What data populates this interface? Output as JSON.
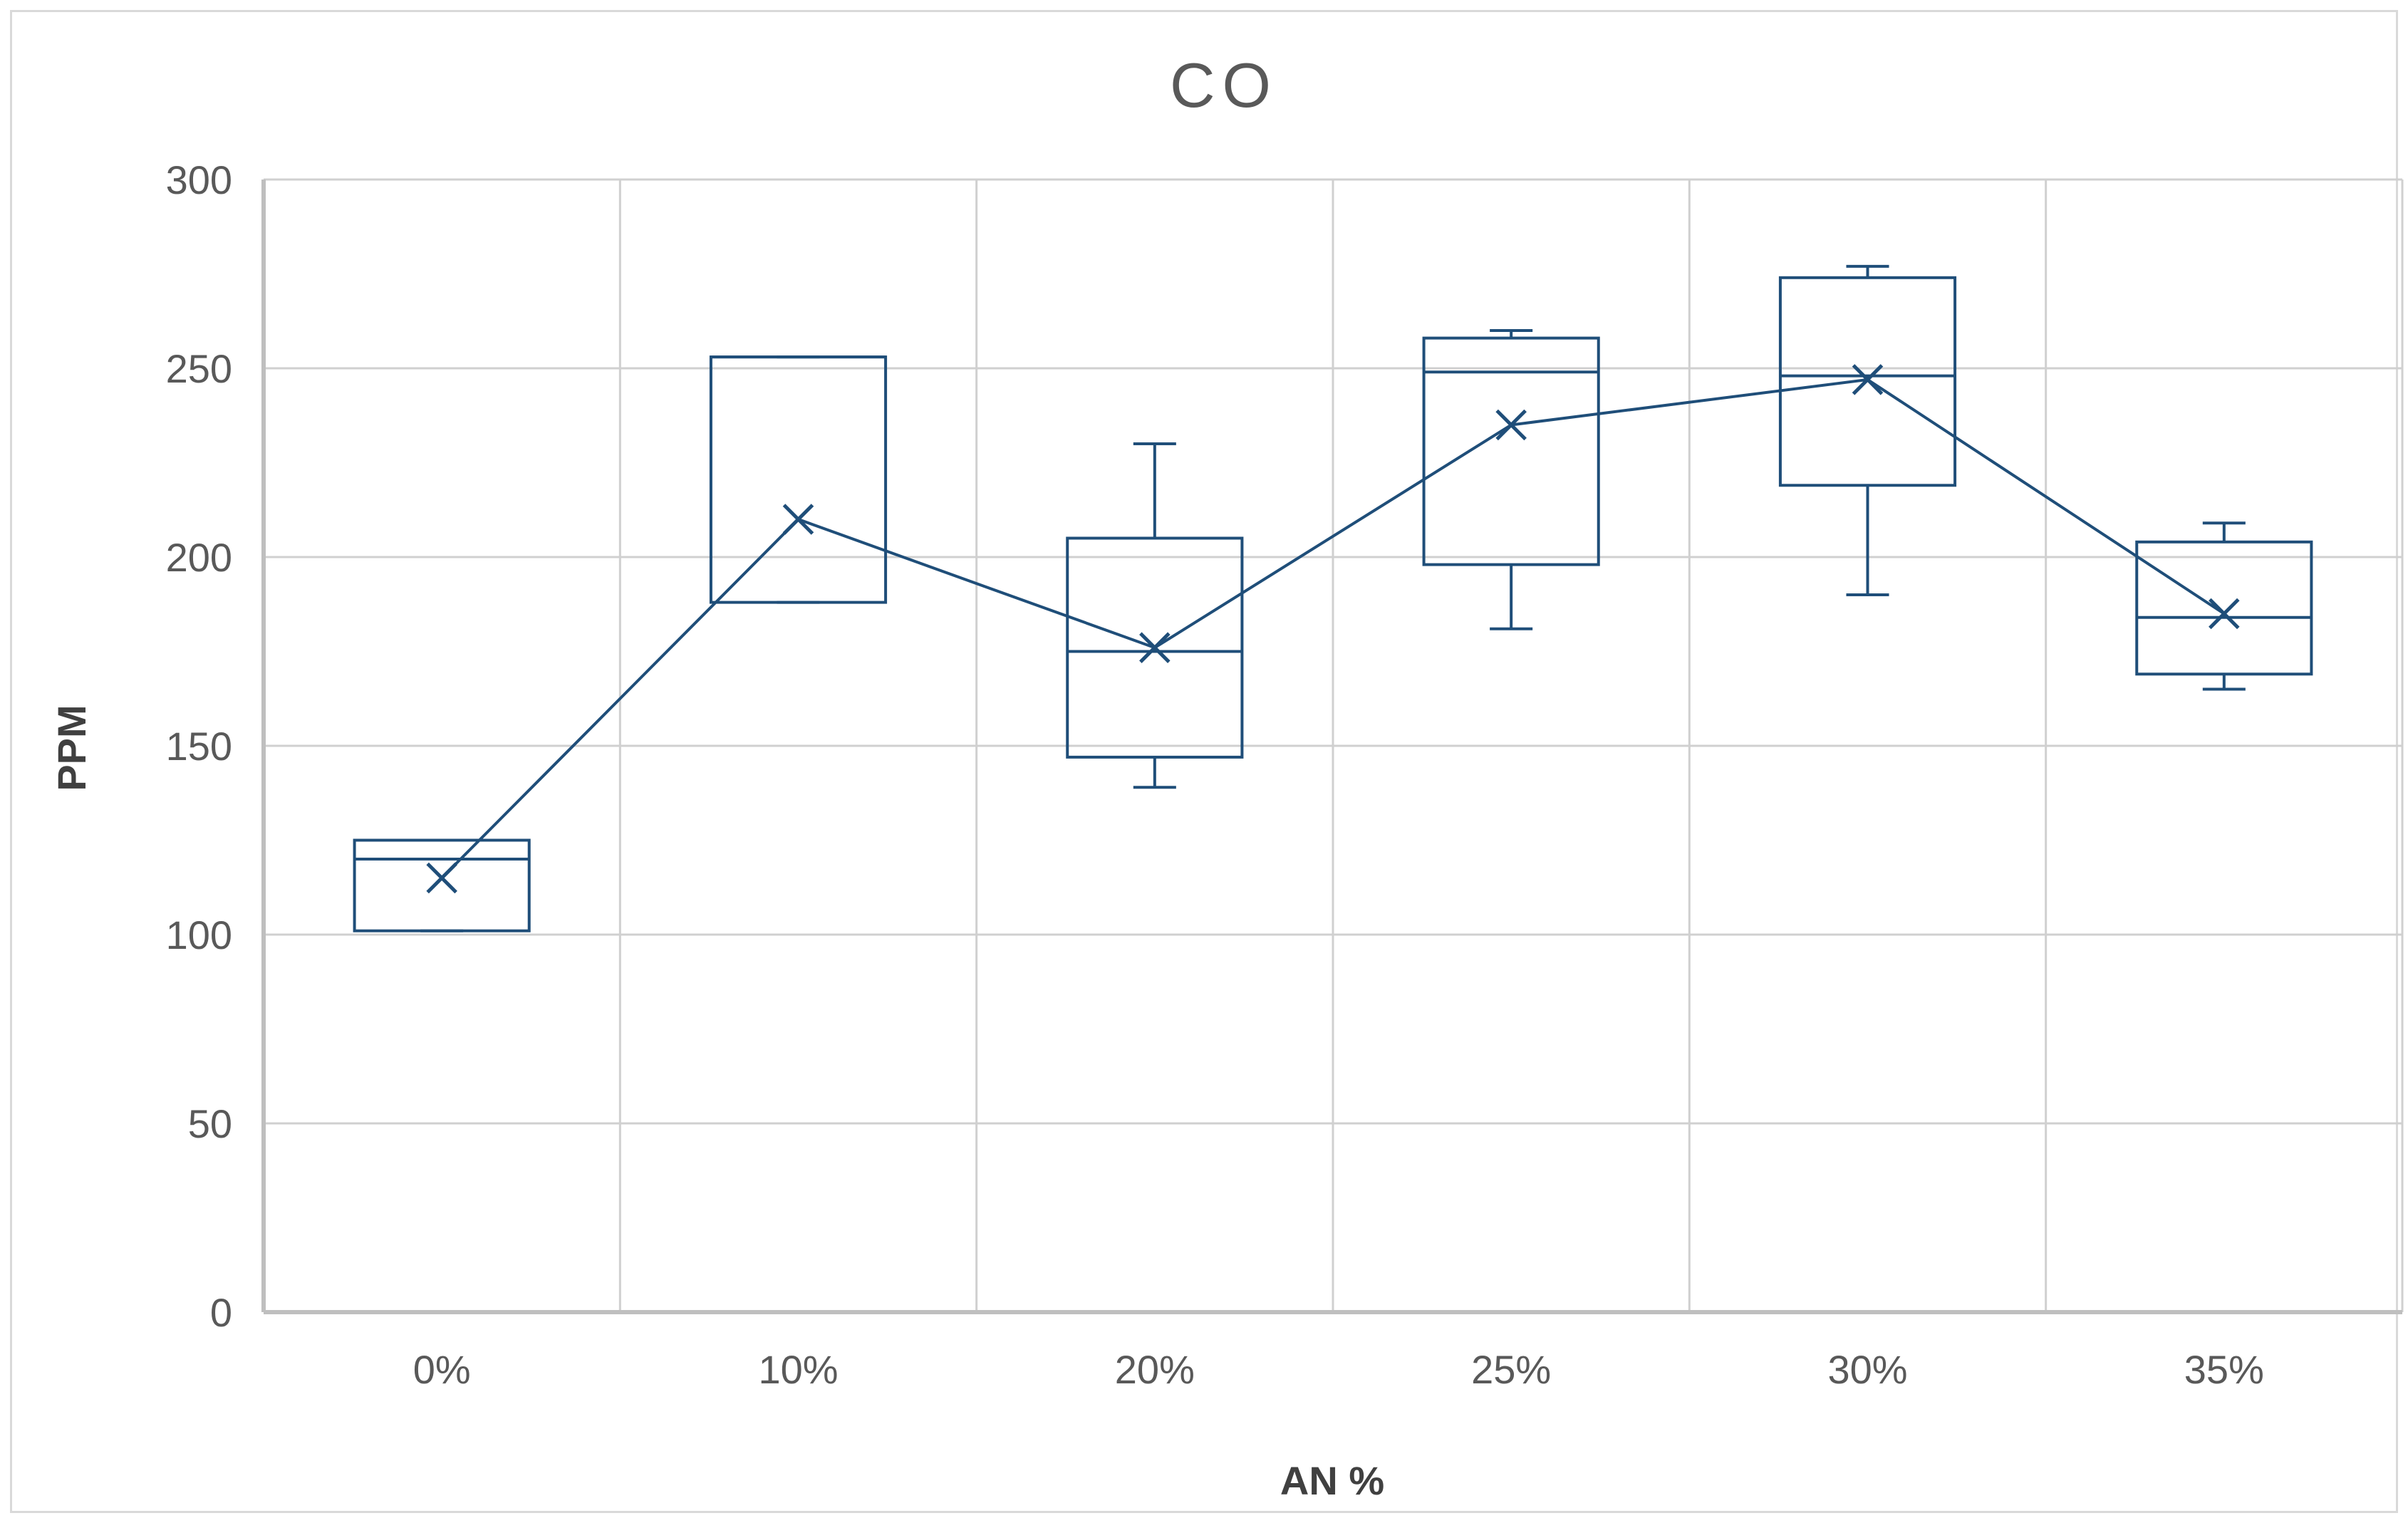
{
  "chart_data": {
    "type": "box",
    "title": "CO",
    "xlabel": "AN %",
    "ylabel": "PPM",
    "ylim": [
      0,
      300
    ],
    "yticks": [
      "0",
      "50",
      "100",
      "150",
      "200",
      "250",
      "300"
    ],
    "categories": [
      "0%",
      "10%",
      "20%",
      "25%",
      "30%",
      "35%"
    ],
    "boxes": [
      {
        "category": "0%",
        "min": 101,
        "q1": 101,
        "median": 120,
        "q3": 125,
        "max": 125,
        "mean": 115
      },
      {
        "category": "10%",
        "min": 188,
        "q1": 188,
        "median": 253,
        "q3": 253,
        "max": 253,
        "mean": 210
      },
      {
        "category": "20%",
        "min": 139,
        "q1": 147,
        "median": 175,
        "q3": 205,
        "max": 230,
        "mean": 176
      },
      {
        "category": "25%",
        "min": 181,
        "q1": 198,
        "median": 249,
        "q3": 258,
        "max": 260,
        "mean": 235
      },
      {
        "category": "30%",
        "min": 190,
        "q1": 219,
        "median": 248,
        "q3": 274,
        "max": 277,
        "mean": 247
      },
      {
        "category": "35%",
        "min": 165,
        "q1": 169,
        "median": 184,
        "q3": 204,
        "max": 209,
        "mean": 185
      }
    ],
    "grid": true,
    "mean_line": true,
    "color": "#1f4e79",
    "grid_color": "#d0d0d0",
    "axis_color": "#bfbfbf"
  }
}
